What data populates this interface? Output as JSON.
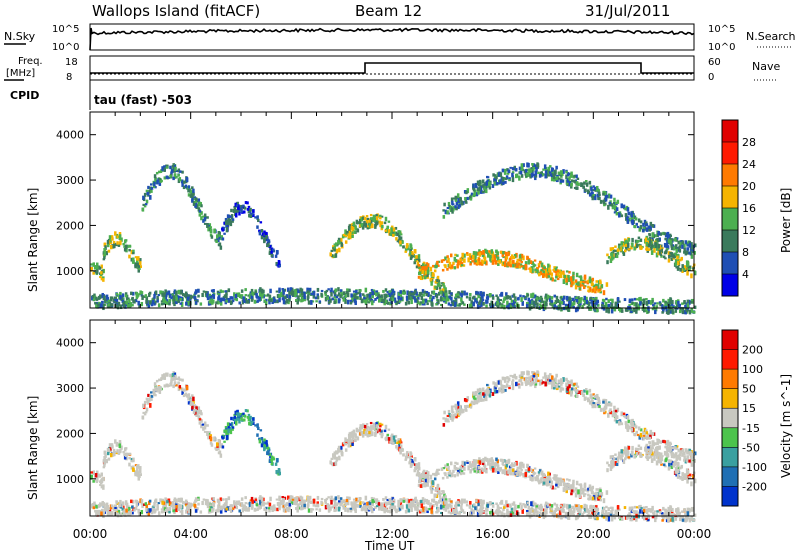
{
  "header": {
    "station": "Wallops Island (fitACF)",
    "beam": "Beam 12",
    "date": "31/Jul/2011"
  },
  "sky_panel": {
    "label": "N.Sky",
    "top_tick": "10^5",
    "bottom_tick": "10^0",
    "right_top_tick": "10^5",
    "right_bottom_tick": "10^0",
    "search_label": "N.Search"
  },
  "freq_panel": {
    "label_line1": "Freq.",
    "label_line2": "[MHz]",
    "top_tick": "18",
    "bottom_tick": "8",
    "right_top_tick": "60",
    "right_bottom_tick": "0",
    "nave_label": "Nave",
    "cpid_label": "CPID",
    "cpid_text": "tau (fast) -503"
  },
  "chart_data": [
    {
      "type": "heatmap",
      "title": "",
      "ylabel": "Slant Range [km]",
      "ylim": [
        180,
        4500
      ],
      "yticks": [
        1000,
        2000,
        3000,
        4000
      ],
      "colorbar_label": "Power [dB]",
      "colorbar_ticks": [
        "4",
        "8",
        "12",
        "16",
        "20",
        "24",
        "28"
      ],
      "colorbar_range": [
        0,
        32
      ],
      "colors": [
        "#0000e6",
        "#1f4fb4",
        "#3a7a5c",
        "#4caf50",
        "#f5b400",
        "#ff7a00",
        "#ff1a00",
        "#e00000"
      ]
    },
    {
      "type": "heatmap",
      "title": "",
      "ylabel": "Slant Range [km]",
      "ylim": [
        180,
        4500
      ],
      "yticks": [
        1000,
        2000,
        3000,
        4000
      ],
      "xlabel": "Time UT",
      "xticks": [
        "00:00",
        "04:00",
        "08:00",
        "12:00",
        "16:00",
        "20:00",
        "00:00"
      ],
      "colorbar_label": "Velocity [m s^-1]",
      "colorbar_ticks": [
        "200",
        "100",
        "50",
        "15",
        "-15",
        "-50",
        "-100",
        "-200"
      ],
      "colors": [
        "#0033cc",
        "#1f6fb4",
        "#3aa0a0",
        "#4cc44c",
        "#c8c8c0",
        "#f5b400",
        "#ff7a00",
        "#ff1a00",
        "#e00000"
      ]
    }
  ]
}
